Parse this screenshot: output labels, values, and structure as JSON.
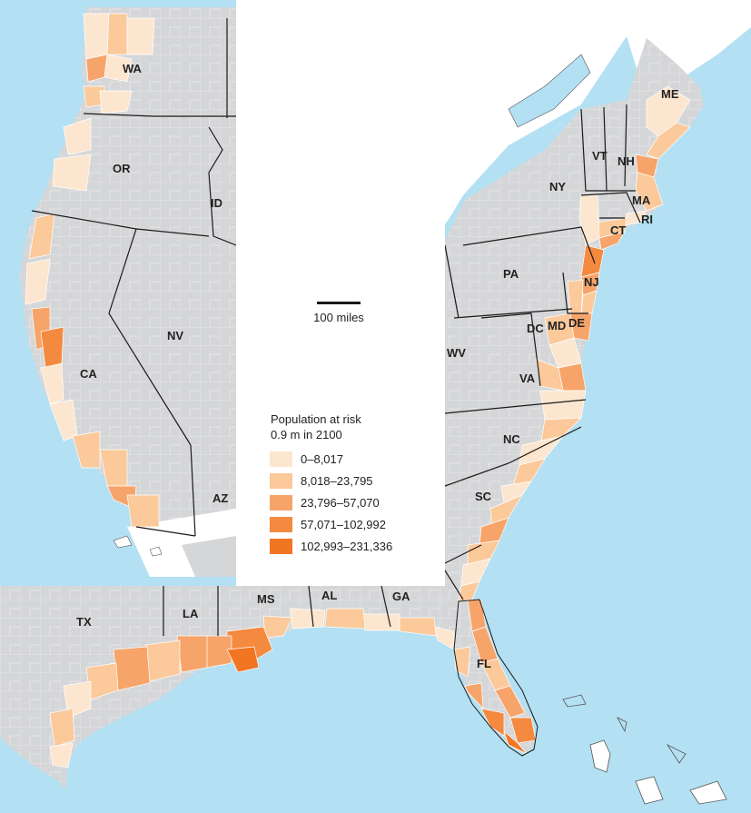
{
  "colors": {
    "ocean": "#b3e0f2",
    "land": "#d5d6d8",
    "county_line": "#ffffff",
    "border": "#1a1a1a",
    "class1": "#fde6cf",
    "class2": "#fbc99a",
    "class3": "#f7a46a",
    "class4": "#f48a40",
    "class5": "#f27522"
  },
  "states_west": [
    "WA",
    "OR",
    "ID",
    "CA",
    "NV",
    "AZ"
  ],
  "states_east": [
    "ME",
    "VT",
    "NH",
    "NY",
    "MA",
    "CT",
    "RI",
    "PA",
    "NJ",
    "DC",
    "MD",
    "DE",
    "WV",
    "VA",
    "NC",
    "SC",
    "GA",
    "FL",
    "AL",
    "MS",
    "LA",
    "TX"
  ],
  "scale_bar": {
    "label": "100 miles"
  },
  "legend": {
    "title_line1": "Population at risk",
    "title_line2": "0.9 m in 2100",
    "items": [
      {
        "label": "0–8,017",
        "color": "#fde6cf"
      },
      {
        "label": "8,018–23,795",
        "color": "#fbc99a"
      },
      {
        "label": "23,796–57,070",
        "color": "#f7a46a"
      },
      {
        "label": "57,071–102,992",
        "color": "#f48a40"
      },
      {
        "label": "102,993–231,336",
        "color": "#f27522"
      }
    ]
  }
}
